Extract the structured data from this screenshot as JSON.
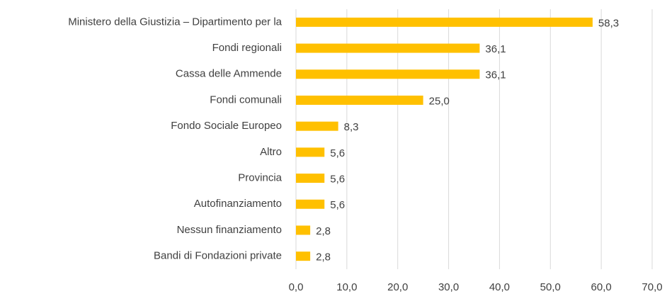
{
  "chart_data": {
    "type": "hbar",
    "categories": [
      "Ministero della Giustizia – Dipartimento per la",
      "Fondi regionali",
      "Cassa delle Ammende",
      "Fondi comunali",
      "Fondo Sociale Europeo",
      "Altro",
      "Provincia",
      "Autofinanziamento",
      "Nessun finanziamento",
      "Bandi di Fondazioni private"
    ],
    "values": [
      58.3,
      36.1,
      36.1,
      25.0,
      8.3,
      5.6,
      5.6,
      5.6,
      2.8,
      2.8
    ],
    "value_labels": [
      "58,3",
      "36,1",
      "36,1",
      "25,0",
      "8,3",
      "5,6",
      "5,6",
      "5,6",
      "2,8",
      "2,8"
    ],
    "color": "#ffc000",
    "xlim": [
      0,
      70
    ],
    "xticks": [
      {
        "value": 0,
        "label": "0,0"
      },
      {
        "value": 10,
        "label": "10,0"
      },
      {
        "value": 20,
        "label": "20,0"
      },
      {
        "value": 30,
        "label": "30,0"
      },
      {
        "value": 40,
        "label": "40,0"
      },
      {
        "value": 50,
        "label": "50,0"
      },
      {
        "value": 60,
        "label": "60,0"
      },
      {
        "value": 70,
        "label": "70,0"
      }
    ],
    "grid": true
  }
}
